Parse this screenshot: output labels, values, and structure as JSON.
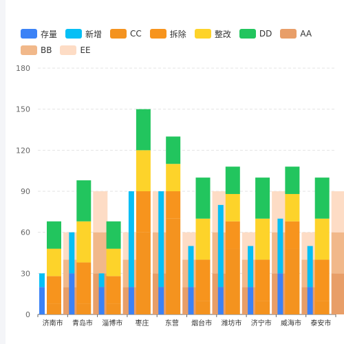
{
  "chart_data": {
    "type": "bar",
    "categories": [
      "济南市",
      "青岛市",
      "淄博市",
      "枣庄",
      "东营",
      "烟台市",
      "潍坊市",
      "济宁市",
      "威海市",
      "泰安市"
    ],
    "ylim": [
      0,
      180
    ],
    "yticks": [
      0,
      30,
      60,
      90,
      120,
      150,
      180
    ],
    "grid": true,
    "legend_position": "top",
    "stacks": [
      {
        "series": [
          "存量",
          "新增"
        ]
      },
      {
        "series": [
          "CC",
          "拆除",
          "整改",
          "DD"
        ]
      },
      {
        "series": [
          "AA",
          "BB",
          "EE"
        ]
      }
    ],
    "series": [
      {
        "name": "存量",
        "color": "#3b82f6",
        "values": [
          20,
          30,
          20,
          20,
          20,
          20,
          20,
          20,
          30,
          20
        ]
      },
      {
        "name": "新增",
        "color": "#06bff5",
        "values": [
          10,
          30,
          10,
          70,
          70,
          30,
          60,
          30,
          40,
          30
        ]
      },
      {
        "name": "CC",
        "color": "#f4931f",
        "values": [
          8,
          8,
          8,
          60,
          70,
          10,
          48,
          10,
          48,
          10
        ]
      },
      {
        "name": "拆除",
        "color": "#f7941d",
        "values": [
          20,
          30,
          20,
          30,
          20,
          30,
          20,
          30,
          20,
          30
        ]
      },
      {
        "name": "整改",
        "color": "#fdd32a",
        "values": [
          20,
          30,
          20,
          30,
          20,
          30,
          20,
          30,
          20,
          30
        ]
      },
      {
        "name": "DD",
        "color": "#22c55e",
        "values": [
          20,
          30,
          20,
          30,
          20,
          30,
          20,
          30,
          20,
          30
        ]
      },
      {
        "name": "AA",
        "color": "#e89e68",
        "values": [
          20,
          30,
          20,
          30,
          20,
          30,
          20,
          30,
          20,
          30
        ]
      },
      {
        "name": "BB",
        "color": "#f1b88a",
        "values": [
          20,
          30,
          20,
          30,
          20,
          30,
          20,
          30,
          20,
          30
        ]
      },
      {
        "name": "EE",
        "color": "#fddcc5",
        "values": [
          20,
          30,
          20,
          30,
          20,
          30,
          20,
          30,
          20,
          30
        ]
      }
    ]
  }
}
